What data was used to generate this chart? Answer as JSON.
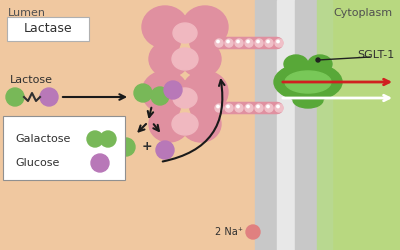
{
  "bg_lumen": "#f0c8a0",
  "bg_mem_gray": "#c8c8c8",
  "bg_mem_light": "#e0e0e0",
  "bg_mem_green": "#b8d890",
  "bg_cytoplasm": "#b8d880",
  "text_lumen": "Lumen",
  "text_cytoplasm": "Cytoplasm",
  "text_lactase": "Lactase",
  "text_lactose": "Lactose",
  "text_galactose": "Galactose",
  "text_glucose": "Glucose",
  "text_sglt1": "SGLT-1",
  "text_2nat": "2 Na⁺",
  "enzyme_color": "#e090a0",
  "enzyme_light": "#f0b8c0",
  "galactose_color": "#78b858",
  "glucose_color": "#b878b8",
  "sglt1_color": "#58a838",
  "sglt1_light": "#78c858",
  "arrow_color": "#1a1a1a",
  "red_arrow": "#d02020",
  "white_arrow": "#ffffff",
  "legend_bg": "#ffffff",
  "bead_color": "#f0c0c8",
  "label_fontsize": 8,
  "small_fontsize": 7
}
